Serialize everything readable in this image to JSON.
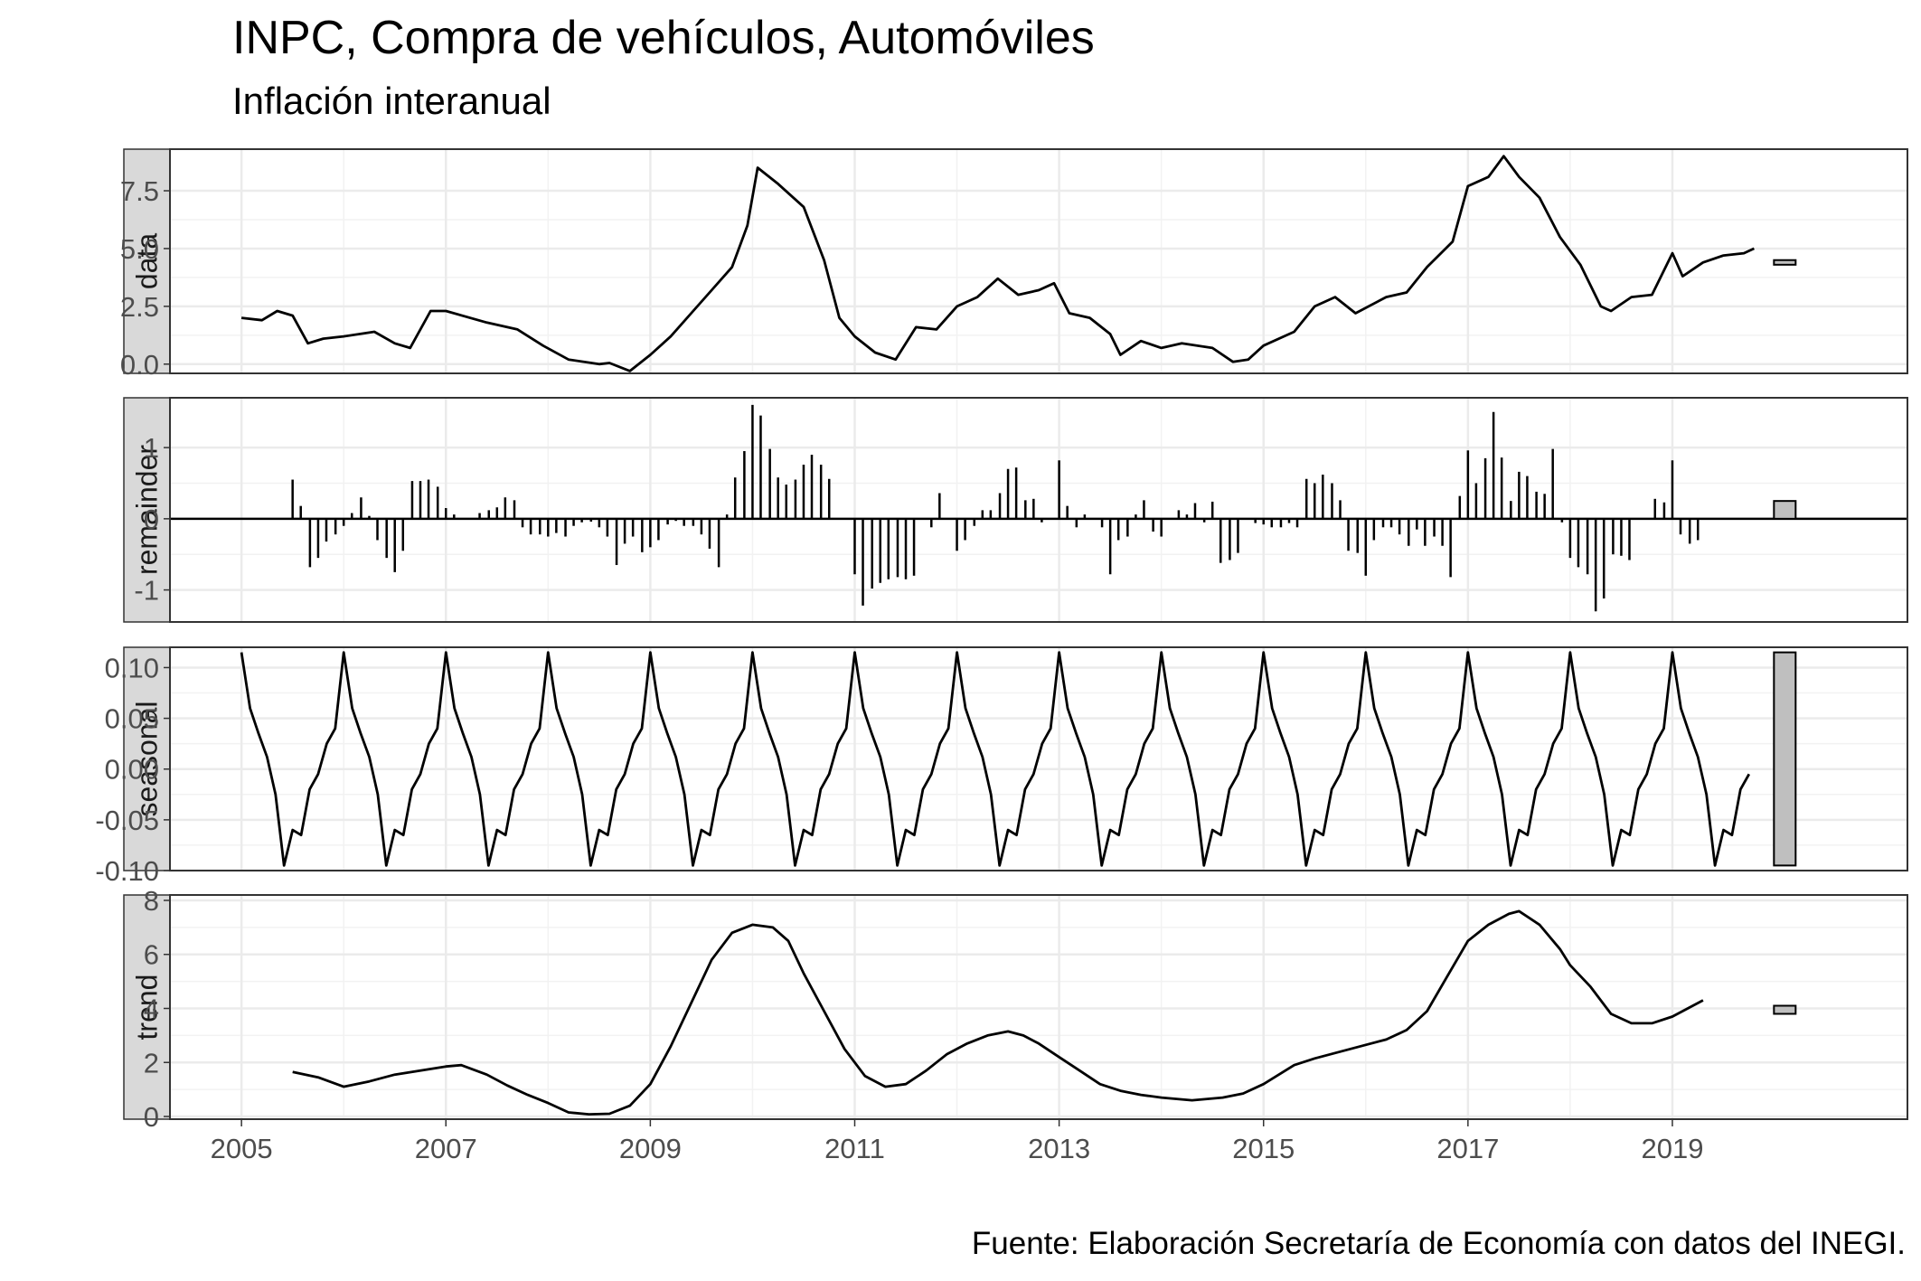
{
  "chart_data": {
    "type": "line",
    "title": "INPC, Compra de vehículos, Automóviles",
    "subtitle": "Inflación interanual",
    "caption": "Fuente: Elaboración Secretaría de Economía con datos del INEGI.",
    "xlim": [
      2004.3,
      2021.3
    ],
    "x_ticks": [
      2005,
      2007,
      2009,
      2011,
      2013,
      2015,
      2017,
      2019
    ],
    "grid": true,
    "panels": [
      {
        "name": "data",
        "strip_label": "data",
        "kind": "line",
        "ylim": [
          -0.4,
          9.3
        ],
        "y_ticks": [
          0,
          2.5,
          5,
          7.5
        ],
        "y_tick_labels": [
          "0.0",
          "2.5",
          "5.0",
          "7.5"
        ],
        "range_bar": [
          4.3,
          4.5
        ],
        "x": [
          2005.0,
          2005.2,
          2005.35,
          2005.5,
          2005.65,
          2005.8,
          2006.0,
          2006.3,
          2006.5,
          2006.65,
          2006.85,
          2007.0,
          2007.4,
          2007.7,
          2007.95,
          2008.2,
          2008.5,
          2008.6,
          2008.8,
          2009.0,
          2009.2,
          2009.4,
          2009.6,
          2009.8,
          2009.95,
          2010.05,
          2010.25,
          2010.5,
          2010.7,
          2010.85,
          2011.0,
          2011.2,
          2011.4,
          2011.6,
          2011.8,
          2012.0,
          2012.2,
          2012.4,
          2012.6,
          2012.8,
          2012.95,
          2013.1,
          2013.3,
          2013.5,
          2013.6,
          2013.8,
          2014.0,
          2014.2,
          2014.5,
          2014.7,
          2014.85,
          2015.0,
          2015.3,
          2015.5,
          2015.7,
          2015.9,
          2016.2,
          2016.4,
          2016.6,
          2016.85,
          2017.0,
          2017.2,
          2017.35,
          2017.5,
          2017.7,
          2017.9,
          2018.1,
          2018.3,
          2018.4,
          2018.6,
          2018.8,
          2019.0,
          2019.1,
          2019.3,
          2019.5,
          2019.7,
          2019.8
        ],
        "y": [
          2.0,
          1.9,
          2.3,
          2.1,
          0.9,
          1.1,
          1.2,
          1.4,
          0.9,
          0.7,
          2.3,
          2.3,
          1.8,
          1.5,
          0.8,
          0.2,
          0.0,
          0.05,
          -0.3,
          0.4,
          1.2,
          2.2,
          3.2,
          4.2,
          6.0,
          8.5,
          7.8,
          6.8,
          4.5,
          2.0,
          1.2,
          0.5,
          0.2,
          1.6,
          1.5,
          2.5,
          2.9,
          3.7,
          3.0,
          3.2,
          3.5,
          2.2,
          2.0,
          1.3,
          0.4,
          1.0,
          0.7,
          0.9,
          0.7,
          0.1,
          0.2,
          0.8,
          1.4,
          2.5,
          2.9,
          2.2,
          2.9,
          3.1,
          4.2,
          5.3,
          7.7,
          8.1,
          9.0,
          8.1,
          7.2,
          5.5,
          4.3,
          2.5,
          2.3,
          2.9,
          3.0,
          4.8,
          3.8,
          4.4,
          4.7,
          4.8,
          5.0
        ]
      },
      {
        "name": "remainder",
        "strip_label": "remainder",
        "kind": "bars",
        "ylim": [
          -1.45,
          1.7
        ],
        "y_ticks": [
          -1,
          0,
          1
        ],
        "y_tick_labels": [
          "-1",
          "0",
          "1"
        ],
        "range_bar": [
          0,
          0.25
        ],
        "x": [
          2005.5,
          2005.58,
          2005.67,
          2005.75,
          2005.83,
          2005.92,
          2006.0,
          2006.08,
          2006.17,
          2006.25,
          2006.33,
          2006.42,
          2006.5,
          2006.58,
          2006.67,
          2006.75,
          2006.83,
          2006.92,
          2007.0,
          2007.08,
          2007.17,
          2007.25,
          2007.33,
          2007.42,
          2007.5,
          2007.58,
          2007.67,
          2007.75,
          2007.83,
          2007.92,
          2008.0,
          2008.08,
          2008.17,
          2008.25,
          2008.33,
          2008.42,
          2008.5,
          2008.58,
          2008.67,
          2008.75,
          2008.83,
          2008.92,
          2009.0,
          2009.08,
          2009.17,
          2009.25,
          2009.33,
          2009.42,
          2009.5,
          2009.58,
          2009.67,
          2009.75,
          2009.83,
          2009.92,
          2010.0,
          2010.08,
          2010.17,
          2010.25,
          2010.33,
          2010.42,
          2010.5,
          2010.58,
          2010.67,
          2010.75,
          2010.83,
          2010.92,
          2011.0,
          2011.08,
          2011.17,
          2011.25,
          2011.33,
          2011.42,
          2011.5,
          2011.58,
          2011.67,
          2011.75,
          2011.83,
          2011.92,
          2012.0,
          2012.08,
          2012.17,
          2012.25,
          2012.33,
          2012.42,
          2012.5,
          2012.58,
          2012.67,
          2012.75,
          2012.83,
          2012.92,
          2013.0,
          2013.08,
          2013.17,
          2013.25,
          2013.33,
          2013.42,
          2013.5,
          2013.58,
          2013.67,
          2013.75,
          2013.83,
          2013.92,
          2014.0,
          2014.08,
          2014.17,
          2014.25,
          2014.33,
          2014.42,
          2014.5,
          2014.58,
          2014.67,
          2014.75,
          2014.83,
          2014.92,
          2015.0,
          2015.08,
          2015.17,
          2015.25,
          2015.33,
          2015.42,
          2015.5,
          2015.58,
          2015.67,
          2015.75,
          2015.83,
          2015.92,
          2016.0,
          2016.08,
          2016.17,
          2016.25,
          2016.33,
          2016.42,
          2016.5,
          2016.58,
          2016.67,
          2016.75,
          2016.83,
          2016.92,
          2017.0,
          2017.08,
          2017.17,
          2017.25,
          2017.33,
          2017.42,
          2017.5,
          2017.58,
          2017.67,
          2017.75,
          2017.83,
          2017.92,
          2018.0,
          2018.08,
          2018.17,
          2018.25,
          2018.33,
          2018.42,
          2018.5,
          2018.58,
          2018.67,
          2018.75,
          2018.83,
          2018.92,
          2019.0,
          2019.08,
          2019.17,
          2019.25
        ],
        "y": [
          0.55,
          0.18,
          -0.68,
          -0.55,
          -0.32,
          -0.22,
          -0.1,
          0.08,
          0.3,
          0.04,
          -0.3,
          -0.55,
          -0.75,
          -0.45,
          0.53,
          0.53,
          0.55,
          0.45,
          0.15,
          0.06,
          0.0,
          0.0,
          0.08,
          0.12,
          0.16,
          0.3,
          0.26,
          -0.12,
          -0.22,
          -0.22,
          -0.25,
          -0.2,
          -0.25,
          -0.1,
          -0.05,
          -0.04,
          -0.12,
          -0.25,
          -0.65,
          -0.35,
          -0.25,
          -0.47,
          -0.4,
          -0.3,
          -0.08,
          -0.03,
          -0.1,
          -0.1,
          -0.22,
          -0.42,
          -0.68,
          0.06,
          0.58,
          0.95,
          1.6,
          1.45,
          0.98,
          0.58,
          0.48,
          0.55,
          0.76,
          0.9,
          0.76,
          0.56,
          0.0,
          0.0,
          -0.78,
          -1.22,
          -0.98,
          -0.9,
          -0.85,
          -0.82,
          -0.85,
          -0.8,
          0.0,
          -0.12,
          0.36,
          0.0,
          -0.45,
          -0.3,
          -0.1,
          0.12,
          0.12,
          0.36,
          0.7,
          0.72,
          0.26,
          0.28,
          -0.05,
          0.0,
          0.82,
          0.18,
          -0.12,
          0.06,
          0.0,
          -0.12,
          -0.78,
          -0.3,
          -0.25,
          0.06,
          0.26,
          -0.18,
          -0.25,
          0.0,
          0.12,
          0.06,
          0.22,
          -0.05,
          0.24,
          -0.62,
          -0.58,
          -0.48,
          0.0,
          -0.06,
          -0.08,
          -0.12,
          -0.12,
          -0.06,
          -0.12,
          0.56,
          0.5,
          0.62,
          0.5,
          0.26,
          -0.45,
          -0.48,
          -0.8,
          -0.3,
          -0.12,
          -0.12,
          -0.22,
          -0.38,
          -0.15,
          -0.38,
          -0.25,
          -0.38,
          -0.82,
          0.32,
          0.96,
          0.5,
          0.85,
          1.5,
          0.86,
          0.25,
          0.66,
          0.6,
          0.38,
          0.35,
          0.98,
          -0.05,
          -0.55,
          -0.68,
          -0.78,
          -1.3,
          -1.12,
          -0.5,
          -0.52,
          -0.58,
          0.0,
          0.0,
          0.28,
          0.23,
          0.82,
          -0.22,
          -0.35,
          -0.3
        ]
      },
      {
        "name": "seasonal",
        "strip_label": "seasonal",
        "kind": "line",
        "ylim": [
          -0.1,
          0.12
        ],
        "y_ticks": [
          -0.1,
          -0.05,
          0,
          0.05,
          0.1
        ],
        "y_tick_labels": [
          "-0.10",
          "-0.05",
          "0.00",
          "0.05",
          "0.10"
        ],
        "range_bar": [
          -0.095,
          0.115
        ],
        "pattern": [
          0.115,
          0.06,
          0.035,
          0.012,
          -0.025,
          -0.095,
          -0.06,
          -0.065,
          -0.02,
          -0.005,
          0.025,
          0.04
        ],
        "x_start": 2005.0,
        "periods_per_year": 12,
        "n_points": 178
      },
      {
        "name": "trend",
        "strip_label": "trend",
        "kind": "line",
        "ylim": [
          -0.1,
          8.2
        ],
        "y_ticks": [
          0,
          2,
          4,
          6,
          8
        ],
        "y_tick_labels": [
          "0",
          "2",
          "4",
          "6",
          "8"
        ],
        "range_bar": [
          3.8,
          4.1
        ],
        "x": [
          2005.5,
          2005.75,
          2006.0,
          2006.25,
          2006.5,
          2006.75,
          2007.0,
          2007.15,
          2007.4,
          2007.6,
          2007.8,
          2008.0,
          2008.2,
          2008.4,
          2008.6,
          2008.8,
          2009.0,
          2009.2,
          2009.4,
          2009.6,
          2009.8,
          2010.0,
          2010.2,
          2010.35,
          2010.5,
          2010.7,
          2010.9,
          2011.1,
          2011.3,
          2011.5,
          2011.7,
          2011.9,
          2012.1,
          2012.3,
          2012.5,
          2012.65,
          2012.8,
          2013.0,
          2013.2,
          2013.4,
          2013.6,
          2013.8,
          2014.0,
          2014.3,
          2014.6,
          2014.8,
          2015.0,
          2015.3,
          2015.5,
          2015.8,
          2016.0,
          2016.2,
          2016.4,
          2016.6,
          2016.8,
          2017.0,
          2017.2,
          2017.4,
          2017.5,
          2017.7,
          2017.9,
          2018.0,
          2018.2,
          2018.4,
          2018.6,
          2018.8,
          2019.0,
          2019.2,
          2019.3
        ],
        "y": [
          1.65,
          1.45,
          1.1,
          1.3,
          1.55,
          1.7,
          1.85,
          1.9,
          1.55,
          1.15,
          0.8,
          0.5,
          0.15,
          0.08,
          0.1,
          0.4,
          1.2,
          2.6,
          4.2,
          5.8,
          6.8,
          7.1,
          7.0,
          6.5,
          5.3,
          3.9,
          2.5,
          1.5,
          1.1,
          1.2,
          1.7,
          2.3,
          2.7,
          3.0,
          3.15,
          3.0,
          2.7,
          2.2,
          1.7,
          1.2,
          0.95,
          0.8,
          0.7,
          0.6,
          0.7,
          0.85,
          1.2,
          1.9,
          2.15,
          2.45,
          2.65,
          2.85,
          3.2,
          3.9,
          5.2,
          6.5,
          7.1,
          7.5,
          7.6,
          7.1,
          6.2,
          5.6,
          4.8,
          3.8,
          3.45,
          3.45,
          3.7,
          4.1,
          4.3
        ]
      }
    ]
  }
}
